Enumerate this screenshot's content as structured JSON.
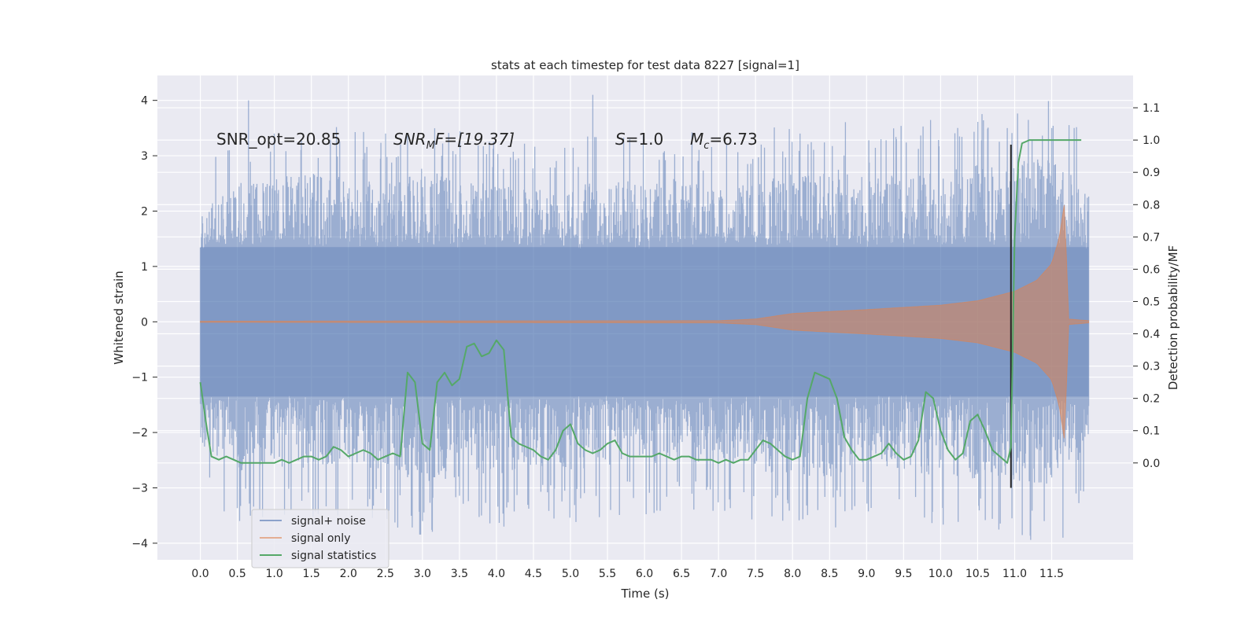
{
  "chart_data": {
    "type": "line",
    "title": "stats at each timestep for test data 8227 [signal=1]",
    "xlabel": "Time (s)",
    "ylabel": "Whitened strain",
    "y2label": "Detection probability/MF",
    "xlim": [
      -0.58,
      12.6
    ],
    "ylim": [
      -4.3,
      4.45
    ],
    "y2lim": [
      -0.3,
      1.2
    ],
    "x_ticks": [
      "0.0",
      "0.5",
      "1.0",
      "1.5",
      "2.0",
      "2.5",
      "3.0",
      "3.5",
      "4.0",
      "4.5",
      "5.0",
      "5.5",
      "6.0",
      "6.5",
      "7.0",
      "7.5",
      "8.0",
      "8.5",
      "9.0",
      "9.5",
      "10.0",
      "10.5",
      "11.0",
      "11.5"
    ],
    "y_ticks": [
      "4",
      "3",
      "2",
      "1",
      "0",
      "-1",
      "-2",
      "-3",
      "-4"
    ],
    "y2_ticks": [
      "0.0",
      "0.1",
      "0.2",
      "0.3",
      "0.4",
      "0.5",
      "0.6",
      "0.7",
      "0.8",
      "0.9",
      "1.0",
      "1.1"
    ],
    "grid": true,
    "legend_position": "lower-left",
    "annotations": {
      "snr_opt": "SNR_opt=20.85",
      "snr_mf_base": "SNR",
      "snr_mf_sub": "M",
      "snr_mf_rest": "F=[19.37]",
      "s_sym": "S",
      "s_val": "=1.0",
      "mc_base": "M",
      "mc_sub": "c",
      "mc_val": "=6.73"
    },
    "series": [
      {
        "name": "signal+ noise",
        "color": "#4c72b0",
        "t_range": [
          0.0,
          12.0
        ],
        "envelope_upper": [
          [
            0.0,
            2.0
          ],
          [
            0.5,
            2.5
          ],
          [
            1.0,
            2.6
          ],
          [
            1.5,
            2.7
          ],
          [
            2.0,
            2.6
          ],
          [
            2.5,
            2.5
          ],
          [
            3.0,
            2.8
          ],
          [
            3.5,
            2.6
          ],
          [
            4.0,
            2.5
          ],
          [
            4.5,
            2.4
          ],
          [
            5.0,
            2.4
          ],
          [
            5.5,
            2.7
          ],
          [
            6.0,
            2.5
          ],
          [
            6.5,
            2.6
          ],
          [
            7.0,
            2.4
          ],
          [
            7.5,
            2.5
          ],
          [
            8.0,
            2.7
          ],
          [
            8.5,
            2.8
          ],
          [
            9.0,
            2.6
          ],
          [
            9.5,
            2.7
          ],
          [
            10.0,
            2.8
          ],
          [
            10.5,
            2.9
          ],
          [
            11.0,
            2.9
          ],
          [
            11.5,
            3.0
          ],
          [
            12.0,
            2.5
          ]
        ],
        "envelope_lower": [
          [
            0.0,
            -2.3
          ],
          [
            0.5,
            -2.7
          ],
          [
            1.0,
            -2.6
          ],
          [
            1.5,
            -2.7
          ],
          [
            2.0,
            -2.6
          ],
          [
            2.5,
            -2.7
          ],
          [
            3.0,
            -2.9
          ],
          [
            3.5,
            -2.8
          ],
          [
            4.0,
            -3.0
          ],
          [
            4.5,
            -2.6
          ],
          [
            5.0,
            -2.7
          ],
          [
            5.5,
            -2.6
          ],
          [
            6.0,
            -2.6
          ],
          [
            6.5,
            -2.5
          ],
          [
            7.0,
            -2.6
          ],
          [
            7.5,
            -2.7
          ],
          [
            8.0,
            -2.8
          ],
          [
            8.5,
            -2.8
          ],
          [
            9.0,
            -2.6
          ],
          [
            9.5,
            -2.7
          ],
          [
            10.0,
            -2.8
          ],
          [
            10.5,
            -2.9
          ],
          [
            11.0,
            -2.9
          ],
          [
            11.5,
            -3.0
          ],
          [
            12.0,
            -2.3
          ]
        ],
        "peaks": [
          [
            0.65,
            4.0
          ],
          [
            5.3,
            4.1
          ],
          [
            11.5,
            3.5
          ],
          [
            4.1,
            -3.7
          ],
          [
            3.0,
            -3.6
          ],
          [
            11.65,
            -3.9
          ],
          [
            11.4,
            -3.6
          ],
          [
            0.8,
            -3.4
          ],
          [
            1.0,
            3.4
          ],
          [
            10.9,
            3.5
          ],
          [
            8.1,
            3.4
          ],
          [
            5.8,
            3.3
          ],
          [
            9.4,
            3.3
          ],
          [
            2.5,
            3.4
          ],
          [
            3.8,
            -3.5
          ]
        ]
      },
      {
        "name": "signal only",
        "color": "#dd8452",
        "t_range": [
          0.0,
          12.0
        ],
        "amplitude": [
          [
            0.0,
            0.01
          ],
          [
            7.0,
            0.02
          ],
          [
            7.5,
            0.05
          ],
          [
            8.0,
            0.15
          ],
          [
            9.0,
            0.22
          ],
          [
            10.0,
            0.3
          ],
          [
            10.5,
            0.38
          ],
          [
            11.0,
            0.55
          ],
          [
            11.3,
            0.75
          ],
          [
            11.5,
            1.05
          ],
          [
            11.6,
            1.5
          ],
          [
            11.68,
            2.2
          ],
          [
            11.72,
            0.05
          ],
          [
            12.0,
            0.02
          ]
        ]
      },
      {
        "name": "signal statistics",
        "color": "#55a868",
        "x": [
          0.0,
          0.08,
          0.15,
          0.25,
          0.35,
          0.45,
          0.55,
          0.65,
          0.75,
          0.9,
          1.0,
          1.1,
          1.2,
          1.3,
          1.4,
          1.5,
          1.6,
          1.7,
          1.8,
          1.9,
          2.0,
          2.1,
          2.2,
          2.3,
          2.4,
          2.5,
          2.6,
          2.7,
          2.8,
          2.9,
          3.0,
          3.1,
          3.2,
          3.3,
          3.4,
          3.5,
          3.6,
          3.7,
          3.8,
          3.9,
          4.0,
          4.1,
          4.2,
          4.3,
          4.4,
          4.5,
          4.6,
          4.7,
          4.8,
          4.9,
          5.0,
          5.1,
          5.2,
          5.3,
          5.4,
          5.5,
          5.6,
          5.7,
          5.8,
          5.9,
          6.0,
          6.1,
          6.2,
          6.3,
          6.4,
          6.5,
          6.6,
          6.7,
          6.8,
          6.9,
          7.0,
          7.1,
          7.2,
          7.3,
          7.4,
          7.5,
          7.6,
          7.7,
          7.8,
          7.9,
          8.0,
          8.1,
          8.2,
          8.3,
          8.4,
          8.5,
          8.6,
          8.7,
          8.8,
          8.9,
          9.0,
          9.1,
          9.2,
          9.3,
          9.4,
          9.5,
          9.6,
          9.7,
          9.8,
          9.9,
          10.0,
          10.1,
          10.2,
          10.3,
          10.4,
          10.5,
          10.6,
          10.7,
          10.8,
          10.9,
          10.95,
          11.0,
          11.05,
          11.1,
          11.2,
          11.3,
          11.5,
          11.7,
          11.9
        ],
        "values": [
          0.25,
          0.12,
          0.02,
          0.01,
          0.02,
          0.01,
          0.0,
          0.0,
          0.0,
          0.0,
          0.0,
          0.01,
          0.0,
          0.01,
          0.02,
          0.02,
          0.01,
          0.02,
          0.05,
          0.04,
          0.02,
          0.03,
          0.04,
          0.03,
          0.01,
          0.02,
          0.03,
          0.02,
          0.28,
          0.25,
          0.06,
          0.04,
          0.25,
          0.28,
          0.24,
          0.26,
          0.36,
          0.37,
          0.33,
          0.34,
          0.38,
          0.35,
          0.08,
          0.06,
          0.05,
          0.04,
          0.02,
          0.01,
          0.04,
          0.1,
          0.12,
          0.06,
          0.04,
          0.03,
          0.04,
          0.06,
          0.07,
          0.03,
          0.02,
          0.02,
          0.02,
          0.02,
          0.03,
          0.02,
          0.01,
          0.02,
          0.02,
          0.01,
          0.01,
          0.01,
          0.0,
          0.01,
          0.0,
          0.01,
          0.01,
          0.04,
          0.07,
          0.06,
          0.04,
          0.02,
          0.01,
          0.02,
          0.2,
          0.28,
          0.27,
          0.26,
          0.2,
          0.08,
          0.04,
          0.01,
          0.01,
          0.02,
          0.03,
          0.06,
          0.03,
          0.01,
          0.02,
          0.07,
          0.22,
          0.2,
          0.1,
          0.04,
          0.01,
          0.03,
          0.13,
          0.15,
          0.1,
          0.04,
          0.02,
          0.0,
          0.05,
          0.7,
          0.93,
          0.99,
          1.0,
          1.0,
          1.0,
          1.0,
          1.0
        ]
      }
    ],
    "vline": {
      "x": 10.95,
      "color": "#262626"
    }
  }
}
